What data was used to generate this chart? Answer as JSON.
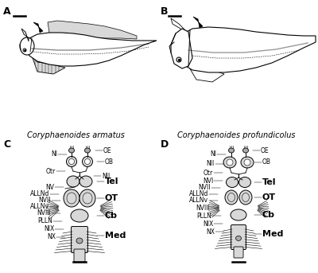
{
  "panel_labels": [
    "A",
    "B",
    "C",
    "D"
  ],
  "panel_label_fontsize": 9,
  "species_A": "Coryphaenoides armatus",
  "species_B": "Coryphaenoides profundicolus",
  "species_fontsize": 7,
  "label_fontsize": 5.5,
  "bold_fontsize": 8,
  "background_color": "#ffffff",
  "line_color": "#000000",
  "gray_light": "#d8d8d8",
  "gray_mid": "#aaaaaa",
  "gray_dark": "#888888",
  "hatch_gray": "#bbbbbb"
}
